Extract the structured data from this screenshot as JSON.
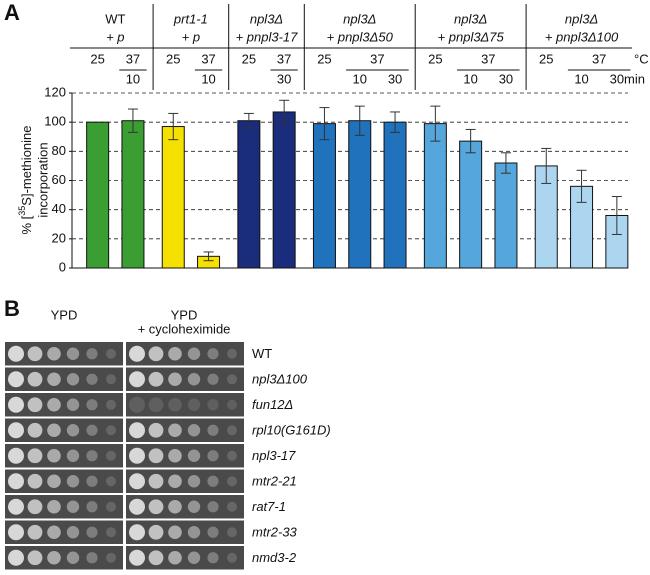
{
  "panel_labels": [
    "A",
    "B"
  ],
  "chart_data": {
    "type": "bar",
    "groups": [
      {
        "name": "WT",
        "plasmid": "+ p",
        "color": "#3a9e33",
        "temps": [
          "25",
          "37"
        ],
        "times": [
          "10"
        ]
      },
      {
        "name": "prt1-1",
        "plasmid": "+ p",
        "color": "#f4e100",
        "temps": [
          "25",
          "37"
        ],
        "times": [
          "10"
        ]
      },
      {
        "name": "npl3Δ",
        "plasmid": "+ pnpl3-17",
        "color": "#1a2c7c",
        "temps": [
          "25",
          "37"
        ],
        "times": [
          "30"
        ]
      },
      {
        "name": "npl3Δ",
        "plasmid": "+ pnpl3Δ50",
        "color": "#2172bd",
        "temps": [
          "25",
          "37"
        ],
        "times": [
          "10",
          "30"
        ]
      },
      {
        "name": "npl3Δ",
        "plasmid": "+ pnpl3Δ75",
        "color": "#55a6db",
        "temps": [
          "25",
          "37"
        ],
        "times": [
          "10",
          "30"
        ]
      },
      {
        "name": "npl3Δ",
        "plasmid": "+ pnpl3Δ100",
        "color": "#acd6ef",
        "temps": [
          "25",
          "37"
        ],
        "times": [
          "10",
          "30"
        ]
      }
    ],
    "temp_unit": "°C",
    "time_unit": "min",
    "values": [
      100,
      101,
      97,
      8,
      101,
      107,
      99,
      101,
      100,
      99,
      87,
      72,
      70,
      56,
      36
    ],
    "errors": [
      null,
      8,
      9,
      3,
      5,
      8,
      11,
      10,
      7,
      12,
      8,
      7,
      12,
      11,
      13
    ],
    "ylabel": {
      "prefix": "% [",
      "sup": "35",
      "suffix": "S]-methionine",
      "line2": "incorporation"
    },
    "ylim": [
      0,
      120
    ],
    "yticks": [
      0,
      20,
      40,
      60,
      80,
      100,
      120
    ],
    "grid": true
  },
  "spot_assay": {
    "media": [
      "YPD",
      "YPD",
      "+ cycloheximide"
    ],
    "strains": [
      "WT",
      "npl3Δ100",
      "fun12Δ",
      "rpl10(G161D)",
      "npl3-17",
      "mtr2-21",
      "rat7-1",
      "mtr2-33",
      "nmd3-2"
    ]
  }
}
